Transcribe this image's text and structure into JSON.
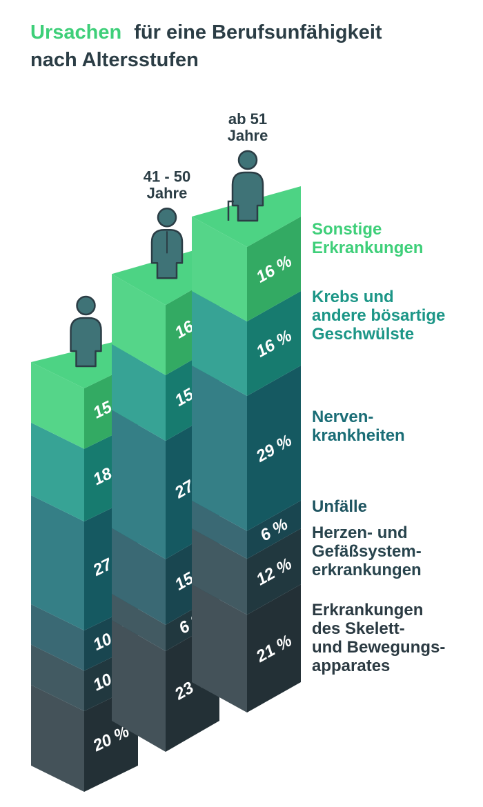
{
  "title": {
    "accent": "Ursachen",
    "rest": "für eine Berufsunfähigkeit",
    "line2": "nach Altersstufen"
  },
  "chart_data": {
    "type": "bar",
    "stacked": true,
    "categories": [
      "",
      "41 - 50 Jahre",
      "ab 51 Jahre"
    ],
    "category_labels": [
      [],
      [
        "41 - 50",
        "Jahre"
      ],
      [
        "ab 51",
        "Jahre"
      ]
    ],
    "series": [
      {
        "name": "Erkrankungen des Skelett- und Bewegungsapparates",
        "values": [
          20,
          23,
          21
        ],
        "value_labels": [
          "20 %",
          "23 %",
          "21 %"
        ],
        "color": "#2b3a42"
      },
      {
        "name": "Herzen- und Gefäßsystemerkrankungen",
        "values": [
          10,
          6,
          12
        ],
        "value_labels": [
          "10 %",
          "6 %",
          "12 %"
        ],
        "color": "#28444d"
      },
      {
        "name": "Unfälle",
        "values": [
          10,
          15,
          6
        ],
        "value_labels": [
          "10 %",
          "15 %",
          "6 %"
        ],
        "color": "#1f5561"
      },
      {
        "name": "Nervenkrankheiten",
        "values": [
          27,
          27,
          29
        ],
        "value_labels": [
          "27 %",
          "27 %",
          "29 %"
        ],
        "color": "#1a6d76"
      },
      {
        "name": "Krebs und andere bösartige Geschwülste",
        "values": [
          18,
          15,
          16
        ],
        "value_labels": [
          "18 %",
          "15 %",
          "16 %"
        ],
        "color": "#1c9687"
      },
      {
        "name": "Sonstige Erkrankungen",
        "values": [
          15,
          16,
          16
        ],
        "value_labels": [
          "15 %",
          "16 %",
          "16 %"
        ],
        "color": "#3ecf79"
      }
    ],
    "legend": [
      {
        "lines": [
          "Sonstige",
          "Erkrankungen"
        ],
        "color": "#3ecf79"
      },
      {
        "lines": [
          "Krebs und",
          "andere bösartige",
          "Geschwülste"
        ],
        "color": "#1c9687"
      },
      {
        "lines": [
          "Nerven-",
          "krankheiten"
        ],
        "color": "#1a6d76"
      },
      {
        "lines": [
          "Unfälle"
        ],
        "color": "#1f5561"
      },
      {
        "lines": [
          "Herzen- und",
          "Gefäßsystem-",
          "erkrankungen"
        ],
        "color": "#28444d"
      },
      {
        "lines": [
          "Erkrankungen",
          "des Skelett-",
          "und Bewegungs-",
          "apparates"
        ],
        "color": "#2b3a42"
      }
    ],
    "legend_placement": "right",
    "figure_icons": [
      "person-icon",
      "person-with-tie-icon",
      "person-with-cane-icon"
    ],
    "grid": false
  }
}
